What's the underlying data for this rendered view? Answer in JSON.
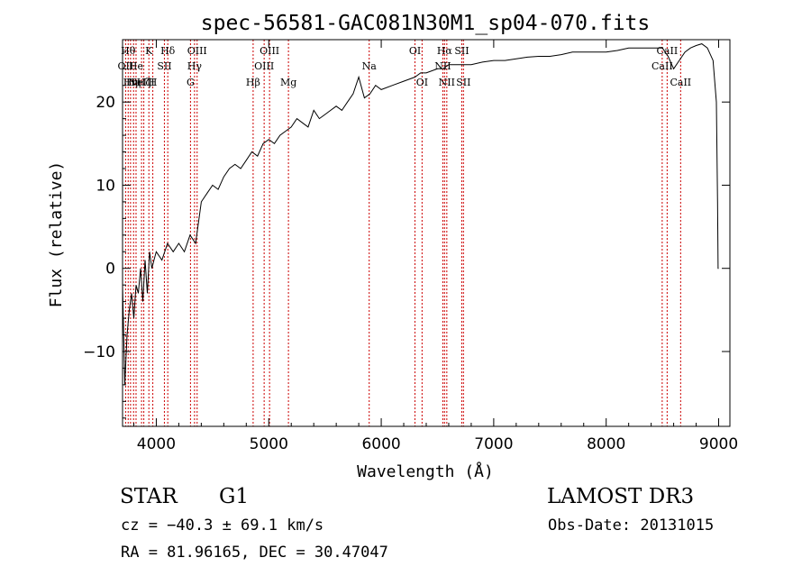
{
  "chart_data": {
    "type": "line",
    "title": "spec-56581-GAC081N30M1_sp04-070.fits",
    "xlabel": "Wavelength (Å)",
    "ylabel": "Flux (relative)",
    "xlim": [
      3700,
      9100
    ],
    "ylim": [
      -19,
      27.5
    ],
    "xticks": [
      4000,
      5000,
      6000,
      7000,
      8000,
      9000
    ],
    "yticks": [
      -10,
      0,
      10,
      20
    ],
    "series": [
      {
        "x": [
          3700,
          3720,
          3740,
          3760,
          3780,
          3800,
          3820,
          3840,
          3860,
          3880,
          3900,
          3920,
          3940,
          3960,
          3980,
          4000,
          4050,
          4100,
          4150,
          4200,
          4250,
          4300,
          4350,
          4400,
          4450,
          4500,
          4550,
          4600,
          4650,
          4700,
          4750,
          4800,
          4850,
          4900,
          4950,
          5000,
          5050,
          5100,
          5150,
          5200,
          5250,
          5300,
          5350,
          5400,
          5450,
          5500,
          5550,
          5600,
          5650,
          5700,
          5750,
          5800,
          5850,
          5900,
          5950,
          6000,
          6100,
          6200,
          6300,
          6350,
          6400,
          6500,
          6550,
          6600,
          6700,
          6800,
          6900,
          7000,
          7100,
          7200,
          7300,
          7400,
          7500,
          7600,
          7700,
          7800,
          7900,
          8000,
          8100,
          8200,
          8300,
          8400,
          8500,
          8550,
          8600,
          8650,
          8700,
          8750,
          8800,
          8850,
          8900,
          8950,
          8980,
          8990,
          8995,
          9000
        ],
        "y": [
          -2,
          -14,
          -8,
          -5,
          -3,
          -6,
          -2,
          -3,
          0,
          -4,
          1,
          -3,
          2,
          0,
          1,
          2,
          1,
          3,
          2,
          3,
          2,
          4,
          3,
          8,
          9,
          10,
          9.5,
          11,
          12,
          12.5,
          12,
          13,
          14,
          13.5,
          15,
          15.5,
          15,
          16,
          16.5,
          17,
          18,
          17.5,
          17,
          19,
          18,
          18.5,
          19,
          19.5,
          19,
          20,
          21,
          23,
          20.5,
          21,
          22,
          21.5,
          22,
          22.5,
          23,
          23.5,
          23.5,
          24,
          24,
          24.5,
          24.5,
          24.5,
          24.8,
          25,
          25,
          25.2,
          25.4,
          25.5,
          25.5,
          25.7,
          26,
          26,
          26,
          26,
          26.2,
          26.5,
          26.5,
          26.5,
          26.5,
          25.5,
          24,
          25,
          26,
          26.5,
          26.8,
          27,
          26.5,
          25,
          20,
          8,
          0,
          0
        ]
      }
    ],
    "lines": [
      {
        "x": 3727,
        "label": "OII",
        "row": 2
      },
      {
        "x": 3750,
        "label": "Hθ",
        "row": 1
      },
      {
        "x": 3771,
        "label": "Hη",
        "row": 3
      },
      {
        "x": 3798,
        "label": "Hη",
        "row": 3
      },
      {
        "x": 3820,
        "label": "He",
        "row": 2
      },
      {
        "x": 3869,
        "label": "NeIII",
        "row": 3
      },
      {
        "x": 3889,
        "label": "Hζ",
        "row": 3
      },
      {
        "x": 3934,
        "label": "K",
        "row": 1
      },
      {
        "x": 3969,
        "label": "H",
        "row": 3
      },
      {
        "x": 4072,
        "label": "SII",
        "row": 2
      },
      {
        "x": 4102,
        "label": "Hδ",
        "row": 1
      },
      {
        "x": 4304,
        "label": "G",
        "row": 3
      },
      {
        "x": 4340,
        "label": "Hγ",
        "row": 2
      },
      {
        "x": 4363,
        "label": "OIII",
        "row": 1
      },
      {
        "x": 4861,
        "label": "Hβ",
        "row": 3
      },
      {
        "x": 4959,
        "label": "OIII",
        "row": 2
      },
      {
        "x": 5007,
        "label": "OIII",
        "row": 1
      },
      {
        "x": 5175,
        "label": "Mg",
        "row": 3
      },
      {
        "x": 5893,
        "label": "Na",
        "row": 2
      },
      {
        "x": 6300,
        "label": "OI",
        "row": 1
      },
      {
        "x": 6363,
        "label": "OI",
        "row": 3
      },
      {
        "x": 6548,
        "label": "NII",
        "row": 2
      },
      {
        "x": 6563,
        "label": "Hα",
        "row": 1
      },
      {
        "x": 6583,
        "label": "NII",
        "row": 3
      },
      {
        "x": 6716,
        "label": "SII",
        "row": 1
      },
      {
        "x": 6731,
        "label": "SII",
        "row": 3
      },
      {
        "x": 8498,
        "label": "CaII",
        "row": 2
      },
      {
        "x": 8542,
        "label": "CaII",
        "row": 1
      },
      {
        "x": 8662,
        "label": "CaII",
        "row": 3
      }
    ],
    "line_color": "#cc0000",
    "grid": false
  },
  "info": {
    "obj_class": "STAR",
    "obj_subclass": "G1",
    "cz": "cz = −40.3 ± 69.1 km/s",
    "radec": "RA =  81.96165, DEC =  30.47047",
    "release": "LAMOST DR3",
    "obs_date": "Obs-Date: 20131015"
  }
}
